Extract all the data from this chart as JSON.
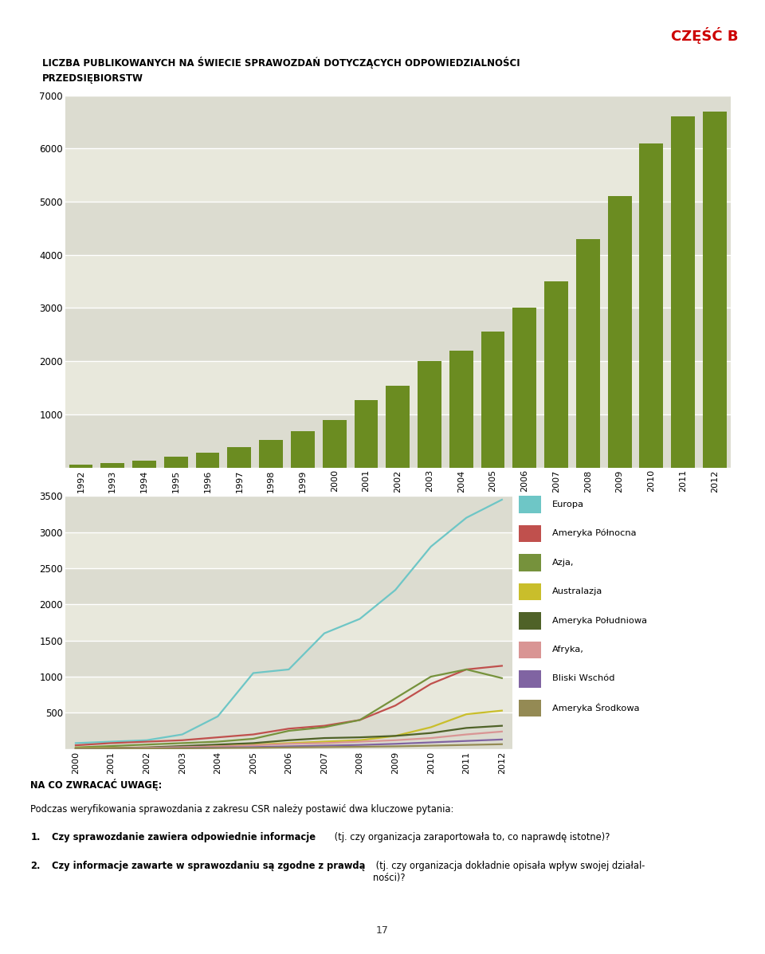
{
  "czesc_b": "CZĘŚĆ B",
  "chart1_title1": "LICZBA PUBLIKOWANYCH NA ŚWIECIE SPRAWOZDAŃ DOTYCZĄCYCH ODPOWIEDZIALNOŚCI",
  "chart1_title2": "PRZEDSIĘBIORSTW",
  "bar_years": [
    1992,
    1993,
    1994,
    1995,
    1996,
    1997,
    1998,
    1999,
    2000,
    2001,
    2002,
    2003,
    2004,
    2005,
    2006,
    2007,
    2008,
    2009,
    2010,
    2011,
    2012
  ],
  "bar_values": [
    50,
    80,
    130,
    200,
    280,
    380,
    520,
    680,
    900,
    1270,
    1530,
    2000,
    2200,
    2550,
    3000,
    3500,
    4300,
    5100,
    6100,
    6600,
    6700
  ],
  "bar_color": "#6b8c21",
  "bar_ylim": [
    0,
    7000
  ],
  "bar_yticks": [
    0,
    1000,
    2000,
    3000,
    4000,
    5000,
    6000,
    7000
  ],
  "line_years": [
    2000,
    2001,
    2002,
    2003,
    2004,
    2005,
    2006,
    2007,
    2008,
    2009,
    2010,
    2011,
    2012
  ],
  "line_ylim": [
    0,
    3500
  ],
  "line_yticks": [
    0,
    500,
    1000,
    1500,
    2000,
    2500,
    3000,
    3500
  ],
  "series_names": [
    "Europa",
    "Ameryka Północna",
    "Azja,",
    "Australazja",
    "Ameryka Południowa",
    "Afryka,",
    "Bliski Wschód",
    "Ameryka Środkowa"
  ],
  "series_colors": [
    "#6ec6c6",
    "#c0504d",
    "#76923c",
    "#c9be2b",
    "#4f6228",
    "#d99594",
    "#8064a2",
    "#948a54"
  ],
  "series_values": [
    [
      80,
      100,
      120,
      200,
      450,
      1050,
      1100,
      1600,
      1800,
      2200,
      2800,
      3200,
      3450
    ],
    [
      50,
      80,
      100,
      120,
      160,
      200,
      280,
      320,
      400,
      600,
      900,
      1100,
      1150
    ],
    [
      20,
      40,
      60,
      80,
      100,
      140,
      250,
      300,
      400,
      700,
      1000,
      1100,
      980
    ],
    [
      10,
      15,
      20,
      30,
      50,
      60,
      80,
      100,
      120,
      180,
      300,
      480,
      530
    ],
    [
      5,
      10,
      20,
      40,
      60,
      80,
      120,
      150,
      160,
      180,
      220,
      290,
      320
    ],
    [
      5,
      8,
      15,
      25,
      35,
      50,
      70,
      80,
      100,
      120,
      150,
      200,
      240
    ],
    [
      2,
      5,
      8,
      12,
      18,
      25,
      35,
      45,
      55,
      70,
      90,
      110,
      130
    ],
    [
      2,
      4,
      6,
      8,
      12,
      15,
      20,
      25,
      30,
      35,
      45,
      55,
      65
    ]
  ],
  "bg_color_even": "#dcdcd0",
  "bg_color_odd": "#e8e8dc",
  "bottom_box_color": "#dcdce8",
  "note_title": "NA CO ZWRACAĆ UWAGĘ:",
  "note_line1": "Podczas weryfikowania sprawozdania z zakresu CSR należy postawić dwa kluczowe pytania:",
  "note_item1_bold": "Czy sprawozdanie zawiera odpowiednie informacje",
  "note_item1_rest": " (tj. czy organizacja zaraportowała to, co naprawdę istotne)?",
  "note_item2_bold": "Czy informacje zawarte w sprawozdaniu są zgodne z prawdą",
  "note_item2_rest": " (tj. czy organizacja dokładnie opisała wpływ swojej działal-\nności)?",
  "page_number": "17"
}
